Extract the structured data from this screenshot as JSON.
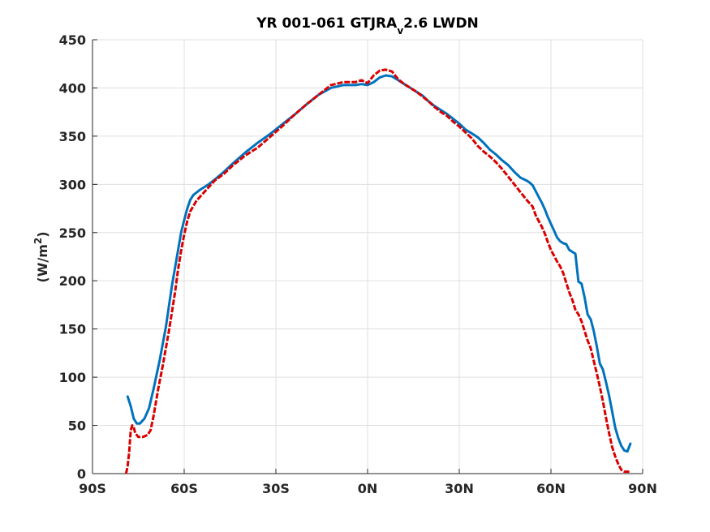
{
  "chart_data": {
    "type": "line",
    "title": {
      "main": "YR 001-061 GTJRA",
      "subscript": "v",
      "suffix": "2.6 LWDN"
    },
    "xlabel": "",
    "ylabel": {
      "prefix": "(W/m",
      "superscript": "2",
      "suffix": ")"
    },
    "xlim": [
      -90,
      90
    ],
    "ylim": [
      0,
      450
    ],
    "xticks": [
      {
        "value": -90,
        "label": "90S"
      },
      {
        "value": -60,
        "label": "60S"
      },
      {
        "value": -30,
        "label": "30S"
      },
      {
        "value": 0,
        "label": "0N"
      },
      {
        "value": 30,
        "label": "30N"
      },
      {
        "value": 60,
        "label": "60N"
      },
      {
        "value": 90,
        "label": "90N"
      }
    ],
    "yticks": [
      {
        "value": 0,
        "label": "0"
      },
      {
        "value": 50,
        "label": "50"
      },
      {
        "value": 100,
        "label": "100"
      },
      {
        "value": 150,
        "label": "150"
      },
      {
        "value": 200,
        "label": "200"
      },
      {
        "value": 250,
        "label": "250"
      },
      {
        "value": 300,
        "label": "300"
      },
      {
        "value": 350,
        "label": "350"
      },
      {
        "value": 400,
        "label": "400"
      },
      {
        "value": 450,
        "label": "450"
      }
    ],
    "grid": true,
    "series": [
      {
        "color": "#0072BD",
        "style": "solid",
        "x": [
          -78.5,
          -77.5,
          -76.5,
          -75.5,
          -74.5,
          -73,
          -71.5,
          -70,
          -68,
          -66,
          -64,
          -62,
          -61,
          -60,
          -59,
          -58,
          -57,
          -55,
          -52,
          -50,
          -47,
          -44,
          -40,
          -36,
          -32,
          -28,
          -24,
          -20,
          -16,
          -12,
          -8,
          -4,
          -2,
          0,
          2,
          4,
          6,
          8,
          10,
          12,
          14,
          16,
          18,
          20,
          22,
          24,
          26,
          28,
          30,
          32,
          34,
          36,
          38,
          40,
          42,
          44,
          46,
          48,
          50,
          52,
          53,
          54,
          55,
          56,
          57,
          58,
          59,
          60,
          61,
          62,
          63,
          64,
          65,
          66,
          67,
          68,
          69,
          70,
          71,
          72,
          73,
          74,
          75,
          76,
          77,
          78,
          79,
          80,
          81,
          82,
          83,
          84,
          85,
          86
        ],
        "y": [
          80,
          70,
          57,
          52,
          52,
          57,
          68,
          88,
          118,
          152,
          195,
          232,
          250,
          263,
          275,
          284,
          289,
          294,
          300,
          305,
          313,
          322,
          333,
          343,
          352,
          362,
          372,
          383,
          393,
          400,
          403,
          403,
          404,
          403,
          406,
          411,
          413,
          412,
          408,
          404,
          400,
          396,
          392,
          386,
          381,
          377,
          373,
          368,
          363,
          357,
          353,
          349,
          343,
          336,
          331,
          325,
          320,
          313,
          307,
          304,
          302,
          299,
          293,
          287,
          281,
          274,
          266,
          259,
          252,
          245,
          241,
          239,
          238,
          232,
          230,
          228,
          199,
          197,
          183,
          165,
          160,
          148,
          132,
          114,
          108,
          95,
          81,
          65,
          48,
          37,
          29,
          24,
          23,
          31
        ]
      },
      {
        "color": "#D90000",
        "style": "dashed",
        "x": [
          -79,
          -78.5,
          -78,
          -77.5,
          -77,
          -76.5,
          -76,
          -75,
          -73.5,
          -72,
          -71,
          -70,
          -68.5,
          -67,
          -65,
          -63,
          -62,
          -61,
          -60,
          -59,
          -58,
          -56,
          -54,
          -52,
          -50,
          -47,
          -44,
          -40,
          -36,
          -32,
          -28,
          -24,
          -20,
          -16,
          -12,
          -8,
          -4,
          -2,
          0,
          2,
          4,
          6,
          8,
          10,
          12,
          14,
          16,
          18,
          20,
          22,
          24,
          26,
          28,
          30,
          32,
          34,
          36,
          38,
          40,
          42,
          44,
          46,
          48,
          50,
          52,
          54,
          55,
          56,
          57,
          58,
          59,
          60,
          61,
          62,
          63,
          64,
          65,
          66,
          67,
          68,
          69,
          70,
          71,
          72,
          73,
          74,
          75,
          76,
          77,
          78,
          79,
          80,
          81,
          82,
          83,
          84,
          85,
          86
        ],
        "y": [
          0,
          8,
          22,
          45,
          50,
          48,
          42,
          38,
          38,
          40,
          45,
          60,
          88,
          112,
          148,
          188,
          212,
          231,
          248,
          262,
          272,
          283,
          290,
          297,
          304,
          311,
          320,
          330,
          338,
          349,
          360,
          372,
          383,
          393,
          403,
          406,
          406,
          408,
          405,
          413,
          418,
          419,
          417,
          409,
          404,
          400,
          396,
          391,
          386,
          380,
          375,
          371,
          365,
          360,
          354,
          348,
          340,
          334,
          329,
          323,
          316,
          308,
          300,
          292,
          284,
          277,
          268,
          262,
          256,
          249,
          240,
          232,
          226,
          220,
          215,
          208,
          198,
          188,
          180,
          170,
          165,
          158,
          148,
          138,
          130,
          117,
          104,
          90,
          75,
          58,
          42,
          28,
          18,
          10,
          4,
          2,
          2,
          2
        ]
      }
    ]
  }
}
